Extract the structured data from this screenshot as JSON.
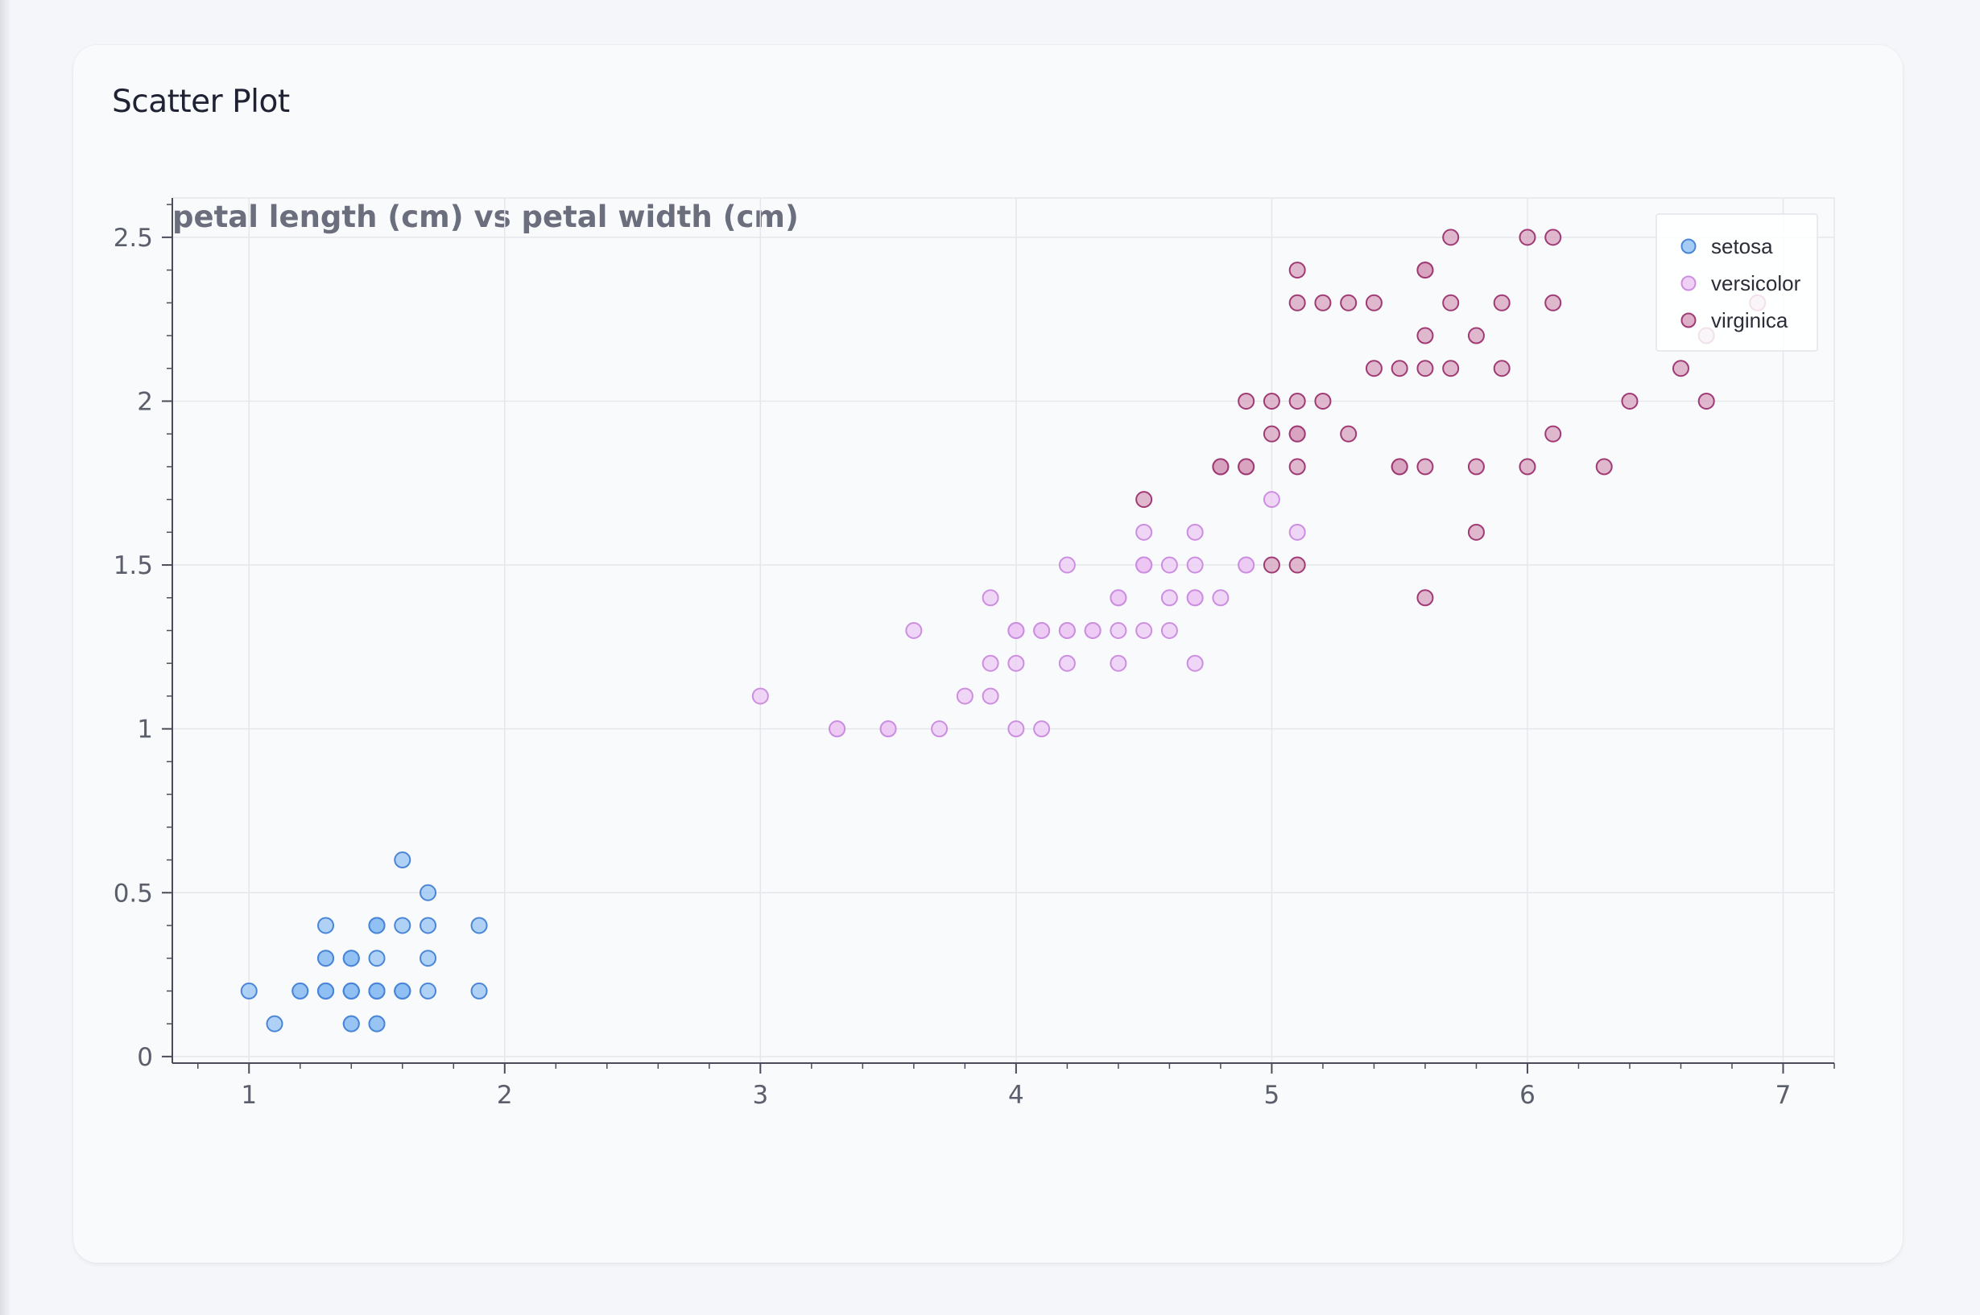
{
  "card": {
    "title": "Scatter Plot"
  },
  "colors": {
    "setosa_fill": "#8fbff2",
    "setosa_stroke": "#4a86d8",
    "versicolor_fill": "#ecc6f4",
    "versicolor_stroke": "#cc8ee0",
    "virginica_fill": "#d49bbb",
    "virginica_stroke": "#a03a74",
    "grid": "#e6e7ec",
    "axis": "#4a4d59"
  },
  "chart_data": {
    "type": "scatter",
    "title": "petal length (cm) vs petal width (cm)",
    "xlabel": "",
    "ylabel": "",
    "xlim": [
      0.7,
      7.2
    ],
    "ylim": [
      -0.02,
      2.62
    ],
    "xticks": [
      1,
      2,
      3,
      4,
      5,
      6,
      7
    ],
    "yticks": [
      0,
      0.5,
      1,
      1.5,
      2,
      2.5
    ],
    "xtick_labels": [
      "1",
      "2",
      "3",
      "4",
      "5",
      "6",
      "7"
    ],
    "ytick_labels": [
      "0",
      "0.5",
      "1",
      "1.5",
      "2",
      "2.5"
    ],
    "grid": true,
    "legend_position": "top-right",
    "series": [
      {
        "name": "setosa",
        "color": "setosa",
        "points": [
          [
            1.4,
            0.2
          ],
          [
            1.4,
            0.2
          ],
          [
            1.3,
            0.2
          ],
          [
            1.5,
            0.2
          ],
          [
            1.4,
            0.2
          ],
          [
            1.7,
            0.4
          ],
          [
            1.4,
            0.3
          ],
          [
            1.5,
            0.2
          ],
          [
            1.4,
            0.2
          ],
          [
            1.5,
            0.1
          ],
          [
            1.5,
            0.2
          ],
          [
            1.6,
            0.2
          ],
          [
            1.4,
            0.1
          ],
          [
            1.1,
            0.1
          ],
          [
            1.2,
            0.2
          ],
          [
            1.5,
            0.4
          ],
          [
            1.3,
            0.4
          ],
          [
            1.4,
            0.3
          ],
          [
            1.7,
            0.3
          ],
          [
            1.5,
            0.3
          ],
          [
            1.7,
            0.2
          ],
          [
            1.5,
            0.4
          ],
          [
            1.0,
            0.2
          ],
          [
            1.7,
            0.5
          ],
          [
            1.9,
            0.2
          ],
          [
            1.6,
            0.2
          ],
          [
            1.6,
            0.4
          ],
          [
            1.5,
            0.2
          ],
          [
            1.4,
            0.2
          ],
          [
            1.6,
            0.2
          ],
          [
            1.6,
            0.2
          ],
          [
            1.5,
            0.4
          ],
          [
            1.5,
            0.1
          ],
          [
            1.4,
            0.2
          ],
          [
            1.5,
            0.2
          ],
          [
            1.2,
            0.2
          ],
          [
            1.3,
            0.2
          ],
          [
            1.4,
            0.1
          ],
          [
            1.3,
            0.2
          ],
          [
            1.5,
            0.2
          ],
          [
            1.3,
            0.3
          ],
          [
            1.3,
            0.3
          ],
          [
            1.3,
            0.2
          ],
          [
            1.6,
            0.6
          ],
          [
            1.9,
            0.4
          ],
          [
            1.4,
            0.3
          ],
          [
            1.6,
            0.2
          ],
          [
            1.4,
            0.2
          ],
          [
            1.5,
            0.2
          ],
          [
            1.4,
            0.2
          ]
        ]
      },
      {
        "name": "versicolor",
        "color": "versicolor",
        "points": [
          [
            4.7,
            1.4
          ],
          [
            4.5,
            1.5
          ],
          [
            4.9,
            1.5
          ],
          [
            4.0,
            1.3
          ],
          [
            4.6,
            1.5
          ],
          [
            4.5,
            1.3
          ],
          [
            4.7,
            1.6
          ],
          [
            3.3,
            1.0
          ],
          [
            4.6,
            1.3
          ],
          [
            3.9,
            1.4
          ],
          [
            3.5,
            1.0
          ],
          [
            4.2,
            1.5
          ],
          [
            4.0,
            1.0
          ],
          [
            4.7,
            1.4
          ],
          [
            3.6,
            1.3
          ],
          [
            4.4,
            1.4
          ],
          [
            4.5,
            1.5
          ],
          [
            4.1,
            1.0
          ],
          [
            4.5,
            1.5
          ],
          [
            3.9,
            1.1
          ],
          [
            4.8,
            1.8
          ],
          [
            4.0,
            1.3
          ],
          [
            4.9,
            1.5
          ],
          [
            4.7,
            1.2
          ],
          [
            4.3,
            1.3
          ],
          [
            4.4,
            1.4
          ],
          [
            4.8,
            1.4
          ],
          [
            5.0,
            1.7
          ],
          [
            4.5,
            1.5
          ],
          [
            3.5,
            1.0
          ],
          [
            3.8,
            1.1
          ],
          [
            3.7,
            1.0
          ],
          [
            3.9,
            1.2
          ],
          [
            5.1,
            1.6
          ],
          [
            4.5,
            1.5
          ],
          [
            4.5,
            1.6
          ],
          [
            4.7,
            1.5
          ],
          [
            4.4,
            1.3
          ],
          [
            4.1,
            1.3
          ],
          [
            4.0,
            1.3
          ],
          [
            4.4,
            1.2
          ],
          [
            4.6,
            1.4
          ],
          [
            4.0,
            1.2
          ],
          [
            3.3,
            1.0
          ],
          [
            4.2,
            1.3
          ],
          [
            4.2,
            1.2
          ],
          [
            4.2,
            1.3
          ],
          [
            4.3,
            1.3
          ],
          [
            3.0,
            1.1
          ],
          [
            4.1,
            1.3
          ]
        ]
      },
      {
        "name": "virginica",
        "color": "virginica",
        "points": [
          [
            6.0,
            2.5
          ],
          [
            5.1,
            1.9
          ],
          [
            5.9,
            2.1
          ],
          [
            5.6,
            1.8
          ],
          [
            5.8,
            2.2
          ],
          [
            6.6,
            2.1
          ],
          [
            4.5,
            1.7
          ],
          [
            6.3,
            1.8
          ],
          [
            5.8,
            1.8
          ],
          [
            6.1,
            2.5
          ],
          [
            5.1,
            2.0
          ],
          [
            5.3,
            1.9
          ],
          [
            5.5,
            2.1
          ],
          [
            5.0,
            2.0
          ],
          [
            5.1,
            2.4
          ],
          [
            5.3,
            2.3
          ],
          [
            5.5,
            1.8
          ],
          [
            6.7,
            2.2
          ],
          [
            6.9,
            2.3
          ],
          [
            5.0,
            1.5
          ],
          [
            5.7,
            2.3
          ],
          [
            4.9,
            2.0
          ],
          [
            6.7,
            2.0
          ],
          [
            4.9,
            1.8
          ],
          [
            5.7,
            2.1
          ],
          [
            6.0,
            1.8
          ],
          [
            4.8,
            1.8
          ],
          [
            4.9,
            1.8
          ],
          [
            5.6,
            2.1
          ],
          [
            5.8,
            1.6
          ],
          [
            6.1,
            1.9
          ],
          [
            6.4,
            2.0
          ],
          [
            5.6,
            2.2
          ],
          [
            5.1,
            1.5
          ],
          [
            5.6,
            1.4
          ],
          [
            6.1,
            2.3
          ],
          [
            5.6,
            2.4
          ],
          [
            5.5,
            1.8
          ],
          [
            4.8,
            1.8
          ],
          [
            5.4,
            2.1
          ],
          [
            5.6,
            2.4
          ],
          [
            5.1,
            2.3
          ],
          [
            5.1,
            1.9
          ],
          [
            5.9,
            2.3
          ],
          [
            5.7,
            2.5
          ],
          [
            5.2,
            2.3
          ],
          [
            5.0,
            1.9
          ],
          [
            5.2,
            2.0
          ],
          [
            5.4,
            2.3
          ],
          [
            5.1,
            1.8
          ]
        ]
      }
    ]
  }
}
